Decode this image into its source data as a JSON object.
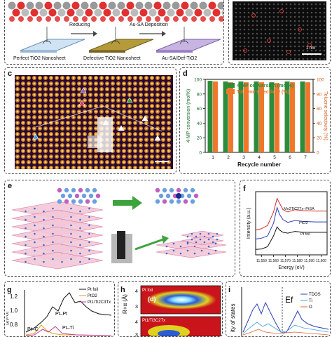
{
  "figure": {
    "panel_a": {
      "steps": [
        "Perfect TiO2 Nanosheet",
        "Defective TiO2 Nanosheet",
        "Au-SA/Def-TiO2"
      ],
      "arrows": [
        "Reducing",
        "Au-SA Deposition"
      ]
    },
    "panel_b": {
      "scalebar": "1 nm"
    },
    "panel_c": {
      "label": "c"
    },
    "panel_d": {
      "label": "d"
    },
    "panel_e": {
      "label": "e"
    },
    "panel_f": {
      "label": "f",
      "curves": [
        "Mo2TiC2Tx–PtSA",
        "PtO2",
        "Pt foil"
      ]
    },
    "panel_g": {
      "label": "g",
      "ylabel": "|χ(R)|",
      "legend": [
        "Pt foil",
        "PtO2",
        "Pt1/Ti2C3Tx"
      ],
      "ticks": [
        "1.2",
        "1.0",
        "0.8"
      ],
      "annotations": [
        "Pt–Pt",
        "Pt–C",
        "Pt–Ti"
      ]
    },
    "panel_h": {
      "label": "h",
      "ylabel": "R+α (Å)",
      "tag": "(d)",
      "subtitle": "Pt foil",
      "sample": "Pt1/Ti3C2Tx",
      "ticks": [
        "4",
        "3",
        "4",
        "3"
      ]
    },
    "panel_i": {
      "label": "i",
      "ylabel": "ity of states",
      "ef": "Ef",
      "legend": [
        "TDOS",
        "Ti",
        "O"
      ]
    }
  },
  "chart_data": [
    {
      "type": "bar",
      "categories": [
        "1",
        "2",
        "3",
        "4",
        "5",
        "6",
        "7"
      ],
      "series": [
        {
          "name": "4-MP conversion (mol%)",
          "values": [
            98,
            97,
            97,
            97,
            96,
            97,
            97
          ]
        },
        {
          "name": "Toluene selectivity (%)",
          "values": [
            97,
            96,
            96,
            96,
            95,
            96,
            96
          ]
        }
      ],
      "xlabel": "Recycle number",
      "ylabel": "4-MP conversion (mol%)",
      "ylabel2": "Toluene selectivity (%)",
      "ylim": [
        0,
        100
      ],
      "yticks": [
        0,
        20,
        40,
        60,
        80,
        100
      ],
      "colors": [
        "#2e8b3a",
        "#f0772a"
      ],
      "legend": "top"
    },
    {
      "type": "line",
      "xlabel": "Energy (eV)",
      "ylabel": "Intensity (a.u.)",
      "xticks": [
        "11,550",
        "11,560",
        "11,570",
        "11,580",
        "11,590",
        "11,600"
      ],
      "xlim": [
        11545,
        11605
      ],
      "series": [
        {
          "name": "Mo2TiC2Tx–PtSA",
          "color": "#d22b2b",
          "x": [
            11545,
            11550,
            11555,
            11560,
            11563,
            11565,
            11568,
            11572,
            11578,
            11585,
            11595,
            11605
          ],
          "y": [
            0.55,
            0.58,
            0.65,
            0.95,
            1.25,
            1.15,
            1.0,
            0.95,
            1.0,
            0.98,
            0.97,
            0.97
          ]
        },
        {
          "name": "PtO2",
          "color": "#2b3fb8",
          "x": [
            11545,
            11550,
            11555,
            11560,
            11563,
            11565,
            11568,
            11572,
            11578,
            11585,
            11595,
            11605
          ],
          "y": [
            0.35,
            0.37,
            0.42,
            0.7,
            1.05,
            0.9,
            0.78,
            0.72,
            0.76,
            0.74,
            0.73,
            0.73
          ]
        },
        {
          "name": "Pt foil",
          "color": "#111111",
          "x": [
            11545,
            11550,
            11555,
            11560,
            11563,
            11565,
            11568,
            11572,
            11578,
            11585,
            11595,
            11605
          ],
          "y": [
            0.12,
            0.13,
            0.18,
            0.42,
            0.62,
            0.55,
            0.5,
            0.48,
            0.52,
            0.5,
            0.5,
            0.5
          ]
        }
      ]
    }
  ]
}
